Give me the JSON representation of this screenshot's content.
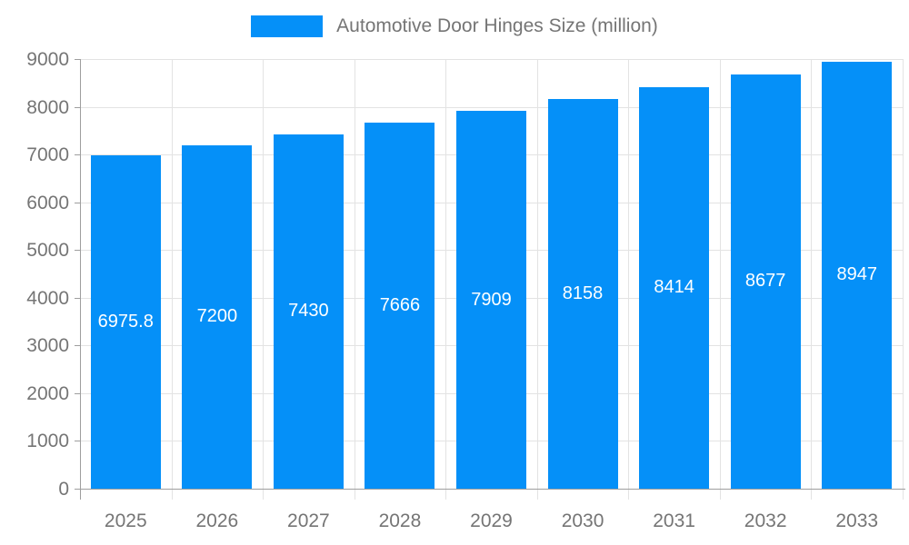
{
  "legend": {
    "label": "Automotive Door Hinges Size (million)"
  },
  "chart_data": {
    "type": "bar",
    "title": "",
    "series_name": "Automotive Door Hinges Size (million)",
    "categories": [
      "2025",
      "2026",
      "2027",
      "2028",
      "2029",
      "2030",
      "2031",
      "2032",
      "2033"
    ],
    "values": [
      6975.8,
      7200,
      7430,
      7666,
      7909,
      8158,
      8414,
      8677,
      8947
    ],
    "value_labels": [
      "6975.8",
      "7200",
      "7430",
      "7666",
      "7909",
      "8158",
      "8414",
      "8677",
      "8947"
    ],
    "xlabel": "",
    "ylabel": "",
    "ylim": [
      0,
      9000
    ],
    "y_ticks": [
      0,
      1000,
      2000,
      3000,
      4000,
      5000,
      6000,
      7000,
      8000,
      9000
    ],
    "grid": true,
    "legend_position": "top",
    "colors": {
      "bar": "#0590f8",
      "gridline": "#e3e3e3",
      "axis": "#9e9e9e",
      "tick_text": "#757575",
      "value_text": "#ffffff",
      "background": "#ffffff"
    }
  }
}
